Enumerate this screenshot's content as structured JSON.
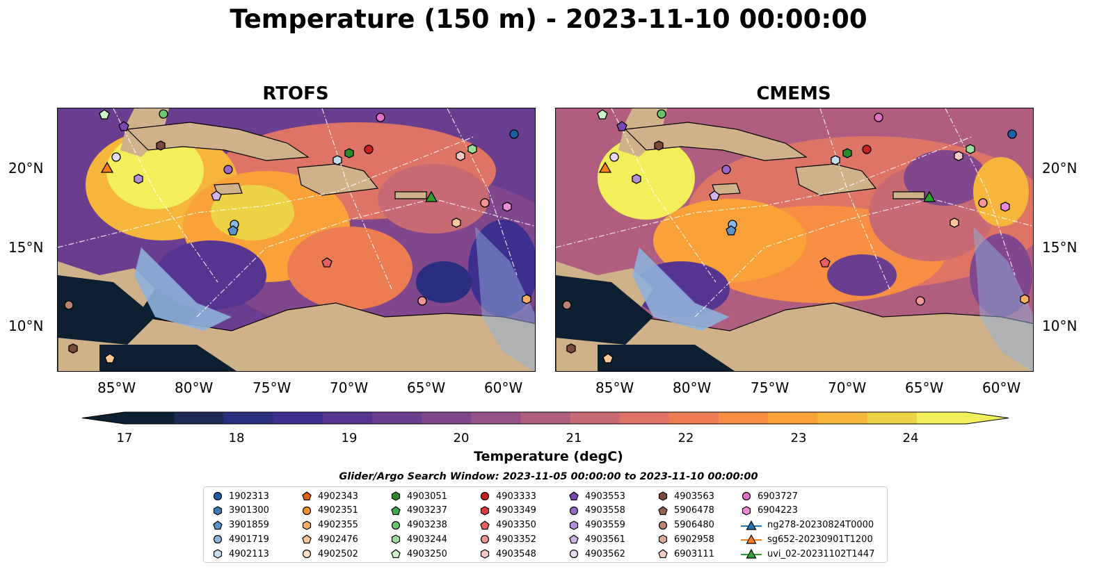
{
  "title": "Temperature (150 m) - 2023-11-10 00:00:00",
  "panels": [
    {
      "title": "RTOFS"
    },
    {
      "title": "CMEMS"
    }
  ],
  "lat_ticks": [
    "20°N",
    "15°N",
    "10°N"
  ],
  "lon_ticks": [
    "85°W",
    "80°W",
    "75°W",
    "70°W",
    "65°W",
    "60°W"
  ],
  "colorbar": {
    "title": "Temperature (degC)",
    "ticks": [
      "17",
      "18",
      "19",
      "20",
      "21",
      "22",
      "23",
      "24"
    ],
    "range": [
      16.75,
      24.75
    ],
    "extend": "both",
    "colors": [
      "#0c2032",
      "#1c2a54",
      "#2a2e7e",
      "#3d2f8e",
      "#55358f",
      "#6a3e8e",
      "#80478d",
      "#985288",
      "#b05e80",
      "#c86a73",
      "#dd7466",
      "#ec7d52",
      "#f68f44",
      "#f9a23a",
      "#f6b63c",
      "#ecd245",
      "#f2f05a"
    ]
  },
  "search_window": "Glider/Argo Search Window: 2023-11-05 00:00:00 to 2023-11-10 00:00:00",
  "legend": [
    {
      "label": "1902313",
      "marker": "circle",
      "color": "#1f5fa8"
    },
    {
      "label": "3901300",
      "marker": "hexagon",
      "color": "#3c7ab8"
    },
    {
      "label": "3901859",
      "marker": "pentagon",
      "color": "#5a94c8"
    },
    {
      "label": "4901719",
      "marker": "circle",
      "color": "#8ab8e0"
    },
    {
      "label": "4902113",
      "marker": "hexagon",
      "color": "#c4dcf0"
    },
    {
      "label": "4902343",
      "marker": "pentagon",
      "color": "#e06010"
    },
    {
      "label": "4902351",
      "marker": "circle",
      "color": "#f4902e"
    },
    {
      "label": "4902355",
      "marker": "hexagon",
      "color": "#f8ae66"
    },
    {
      "label": "4902476",
      "marker": "pentagon",
      "color": "#fac896"
    },
    {
      "label": "4902502",
      "marker": "circle",
      "color": "#fde2c4"
    },
    {
      "label": "4903051",
      "marker": "hexagon",
      "color": "#2a8a2a"
    },
    {
      "label": "4903237",
      "marker": "pentagon",
      "color": "#46a846"
    },
    {
      "label": "4903238",
      "marker": "circle",
      "color": "#6cc46c"
    },
    {
      "label": "4903244",
      "marker": "hexagon",
      "color": "#9adc9a"
    },
    {
      "label": "4903250",
      "marker": "pentagon",
      "color": "#cdf3c8"
    },
    {
      "label": "4903333",
      "marker": "circle",
      "color": "#c81e1e"
    },
    {
      "label": "4903349",
      "marker": "hexagon",
      "color": "#dc3c3c"
    },
    {
      "label": "4903350",
      "marker": "pentagon",
      "color": "#e86060"
    },
    {
      "label": "4903352",
      "marker": "circle",
      "color": "#f29696"
    },
    {
      "label": "4903548",
      "marker": "hexagon",
      "color": "#fbc8c8"
    },
    {
      "label": "4903553",
      "marker": "pentagon",
      "color": "#7a46b4"
    },
    {
      "label": "4903558",
      "marker": "circle",
      "color": "#9868c8"
    },
    {
      "label": "4903559",
      "marker": "hexagon",
      "color": "#b48ed8"
    },
    {
      "label": "4903561",
      "marker": "pentagon",
      "color": "#ceb4e8"
    },
    {
      "label": "4903562",
      "marker": "circle",
      "color": "#e8daf6"
    },
    {
      "label": "4903563",
      "marker": "hexagon",
      "color": "#7a4a3a"
    },
    {
      "label": "5906478",
      "marker": "pentagon",
      "color": "#98604e"
    },
    {
      "label": "5906480",
      "marker": "circle",
      "color": "#ba8272"
    },
    {
      "label": "6902958",
      "marker": "hexagon",
      "color": "#dca898"
    },
    {
      "label": "6903111",
      "marker": "pentagon",
      "color": "#f6cfc2"
    },
    {
      "label": "6903727",
      "marker": "circle",
      "color": "#e070c8"
    },
    {
      "label": "6904223",
      "marker": "hexagon",
      "color": "#f08ad8"
    },
    {
      "label": "ng278-20230824T0000",
      "marker": "triangle-line",
      "color": "#1f77b4"
    },
    {
      "label": "sg652-20230901T1200",
      "marker": "triangle-line",
      "color": "#ff7f0e"
    },
    {
      "label": "uvi_02-20231102T1447",
      "marker": "triangle-line",
      "color": "#2ca02c"
    }
  ]
}
